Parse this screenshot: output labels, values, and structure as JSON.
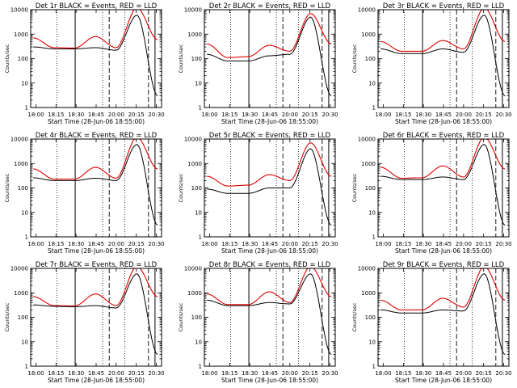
{
  "chart_data": {
    "type": "line",
    "layout": "grid-3x3",
    "shared": {
      "xlabel": "Start Time (28-Jun-06 18:55:00)",
      "ylabel": "Counts/sec",
      "x_ticks": [
        "18:00",
        "18:15",
        "18:30",
        "18:45",
        "20:00",
        "20:15",
        "20:30"
      ],
      "y_ticks": [
        "1",
        "10",
        "100",
        "1000",
        "10000"
      ],
      "y_scale": "log",
      "ylim": [
        1,
        10000
      ],
      "series_colors": {
        "events": "#000000",
        "lld": "#e00000"
      },
      "x_values": [
        "18:00",
        "18:15",
        "18:30",
        "18:45",
        "20:00",
        "20:15",
        "20:30"
      ]
    },
    "panels": [
      {
        "title": "Det 1r BLACK = Events, RED = LLD",
        "series": [
          {
            "key": "lld",
            "values": [
              700,
              280,
              270,
              800,
              280,
              12000,
              600
            ]
          },
          {
            "key": "events",
            "values": [
              300,
              250,
              250,
              280,
              220,
              6000,
              3
            ]
          }
        ]
      },
      {
        "title": "Det 2r BLACK = Events, RED = LLD",
        "series": [
          {
            "key": "lld",
            "values": [
              400,
              110,
              120,
              350,
              200,
              7000,
              400
            ]
          },
          {
            "key": "events",
            "values": [
              150,
              80,
              80,
              130,
              150,
              5000,
              3
            ]
          }
        ]
      },
      {
        "title": "Det 3r BLACK = Events, RED = LLD",
        "series": [
          {
            "key": "lld",
            "values": [
              500,
              200,
              200,
              550,
              250,
              12000,
              500
            ]
          },
          {
            "key": "events",
            "values": [
              250,
              160,
              160,
              250,
              180,
              6000,
              3
            ]
          }
        ]
      },
      {
        "title": "Det 4r BLACK = Events, RED = LLD",
        "series": [
          {
            "key": "lld",
            "values": [
              600,
              230,
              230,
              700,
              250,
              12000,
              600
            ]
          },
          {
            "key": "events",
            "values": [
              260,
              200,
              200,
              250,
              200,
              6000,
              3
            ]
          }
        ]
      },
      {
        "title": "Det 5r BLACK = Events, RED = LLD",
        "series": [
          {
            "key": "lld",
            "values": [
              300,
              120,
              130,
              350,
              200,
              7000,
              300
            ]
          },
          {
            "key": "events",
            "values": [
              90,
              60,
              60,
              100,
              100,
              4000,
              3
            ]
          }
        ]
      },
      {
        "title": "Det 6r BLACK = Events, RED = LLD",
        "series": [
          {
            "key": "lld",
            "values": [
              700,
              250,
              260,
              800,
              280,
              12000,
              600
            ]
          },
          {
            "key": "events",
            "values": [
              300,
              220,
              220,
              280,
              220,
              6000,
              3
            ]
          }
        ]
      },
      {
        "title": "Det 7r BLACK = Events, RED = LLD",
        "series": [
          {
            "key": "lld",
            "values": [
              700,
              300,
              290,
              900,
              300,
              12000,
              700
            ]
          },
          {
            "key": "events",
            "values": [
              320,
              280,
              270,
              300,
              240,
              6000,
              3
            ]
          }
        ]
      },
      {
        "title": "Det 8r BLACK = Events, RED = LLD",
        "series": [
          {
            "key": "lld",
            "values": [
              900,
              330,
              330,
              1100,
              400,
              12000,
              700
            ]
          },
          {
            "key": "events",
            "values": [
              500,
              300,
              300,
              400,
              350,
              6000,
              3
            ]
          }
        ]
      },
      {
        "title": "Det 9r BLACK = Events, RED = LLD",
        "series": [
          {
            "key": "lld",
            "values": [
              500,
              200,
              200,
              600,
              260,
              12000,
              500
            ]
          },
          {
            "key": "events",
            "values": [
              200,
              150,
              150,
              200,
              180,
              6000,
              3
            ]
          }
        ]
      }
    ]
  }
}
